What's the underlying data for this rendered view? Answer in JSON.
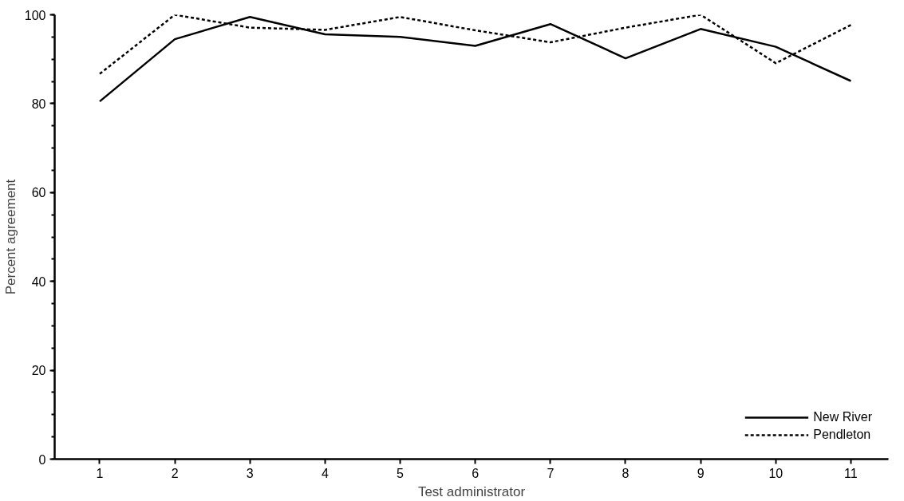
{
  "chart_data": {
    "type": "line",
    "xlabel": "Test administrator",
    "ylabel": "Percent agreement",
    "x": [
      1,
      2,
      3,
      4,
      5,
      6,
      7,
      8,
      9,
      10,
      11
    ],
    "series": [
      {
        "name": "New River",
        "color": "#000000",
        "line_style": "solid",
        "values": [
          80.5,
          94.5,
          99.5,
          95.6,
          95.0,
          93.0,
          97.9,
          90.2,
          96.8,
          92.8,
          85.1
        ]
      },
      {
        "name": "Pendleton",
        "color": "#000000",
        "line_style": "dashed",
        "values": [
          86.7,
          100,
          97.1,
          96.6,
          99.5,
          96.5,
          93.8,
          97.1,
          100,
          89.1,
          97.7
        ]
      }
    ],
    "xlim": [
      0.4,
      11.5
    ],
    "ylim": [
      0,
      100
    ],
    "xticks": [
      1,
      2,
      3,
      4,
      5,
      6,
      7,
      8,
      9,
      10,
      11
    ],
    "yticks": [
      0,
      20,
      40,
      60,
      80,
      100
    ],
    "grid": false,
    "legend": "bottom right",
    "marker": "none"
  }
}
